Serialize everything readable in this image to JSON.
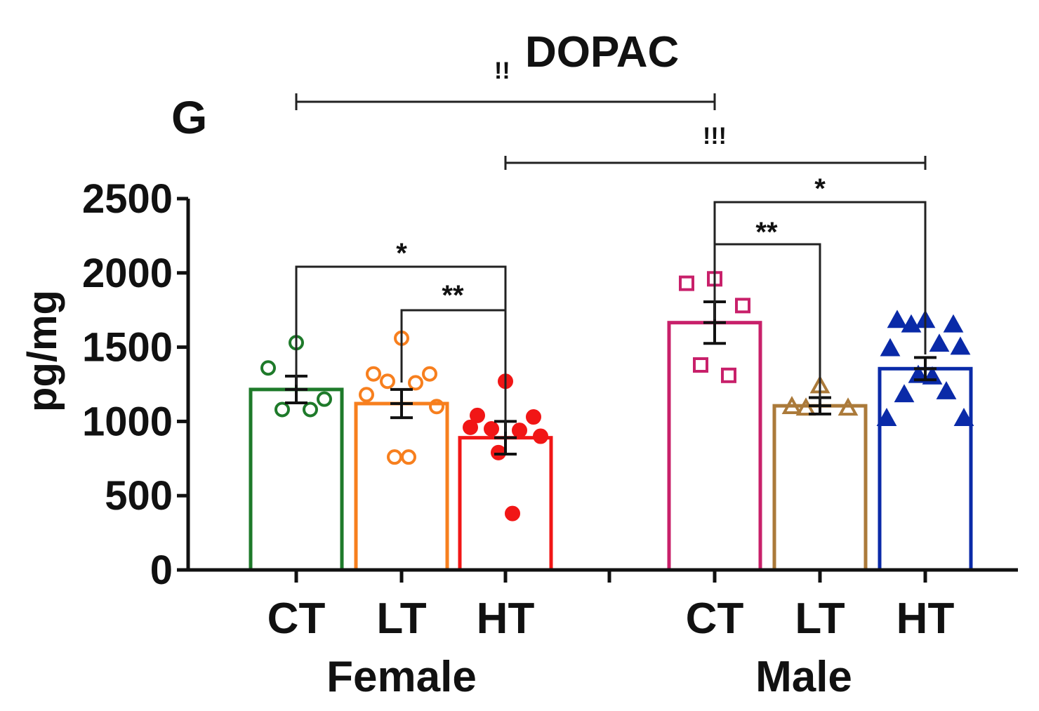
{
  "chart_data": {
    "type": "bar",
    "panel_label": "G",
    "title": "DOPAC",
    "title_prefix": "!!",
    "ylabel": "pg/mg",
    "ylim": [
      0,
      2500
    ],
    "yticks": [
      "0",
      "500",
      "1000",
      "1500",
      "2000",
      "2500"
    ],
    "groups": [
      {
        "name": "Female",
        "bars": [
          {
            "category": "CT",
            "mean": 1215,
            "sem": 90,
            "color": "#1e7a2a",
            "marker": "circle-open",
            "points": [
              1530,
              1360,
              1150,
              1080,
              1080
            ]
          },
          {
            "category": "LT",
            "mean": 1120,
            "sem": 95,
            "color": "#f77f1e",
            "marker": "circle-open",
            "points": [
              1560,
              1320,
              1320,
              1270,
              1260,
              1180,
              1100,
              760,
              760
            ]
          },
          {
            "category": "HT",
            "mean": 890,
            "sem": 110,
            "color": "#f11616",
            "marker": "circle-filled",
            "points": [
              1270,
              1040,
              1030,
              950,
              940,
              960,
              900,
              790,
              380
            ]
          }
        ]
      },
      {
        "name": "Male",
        "bars": [
          {
            "category": "CT",
            "mean": 1665,
            "sem": 140,
            "color": "#c8206a",
            "marker": "square-open",
            "points": [
              1960,
              1930,
              1780,
              1380,
              1310
            ]
          },
          {
            "category": "LT",
            "mean": 1105,
            "sem": 55,
            "color": "#ab7a3a",
            "marker": "triangle-open",
            "points": [
              1240,
              1100,
              1090,
              1090
            ]
          },
          {
            "category": "HT",
            "mean": 1355,
            "sem": 75,
            "color": "#0a2aa8",
            "marker": "triangle-filled",
            "points": [
              1680,
              1680,
              1650,
              1650,
              1520,
              1490,
              1500,
              1310,
              1300,
              1180,
              1200,
              1020,
              1020
            ]
          }
        ]
      }
    ],
    "significance": [
      {
        "label": "*",
        "from": "Female CT",
        "to": "Female HT"
      },
      {
        "label": "**",
        "from": "Female LT",
        "to": "Female HT"
      },
      {
        "label": "**",
        "from": "Male CT",
        "to": "Male LT"
      },
      {
        "label": "*",
        "from": "Male CT",
        "to": "Male HT"
      },
      {
        "label": "!!",
        "from": "Female CT",
        "to": "Male CT"
      },
      {
        "label": "!!!",
        "from": "Female HT",
        "to": "Male HT"
      }
    ]
  }
}
